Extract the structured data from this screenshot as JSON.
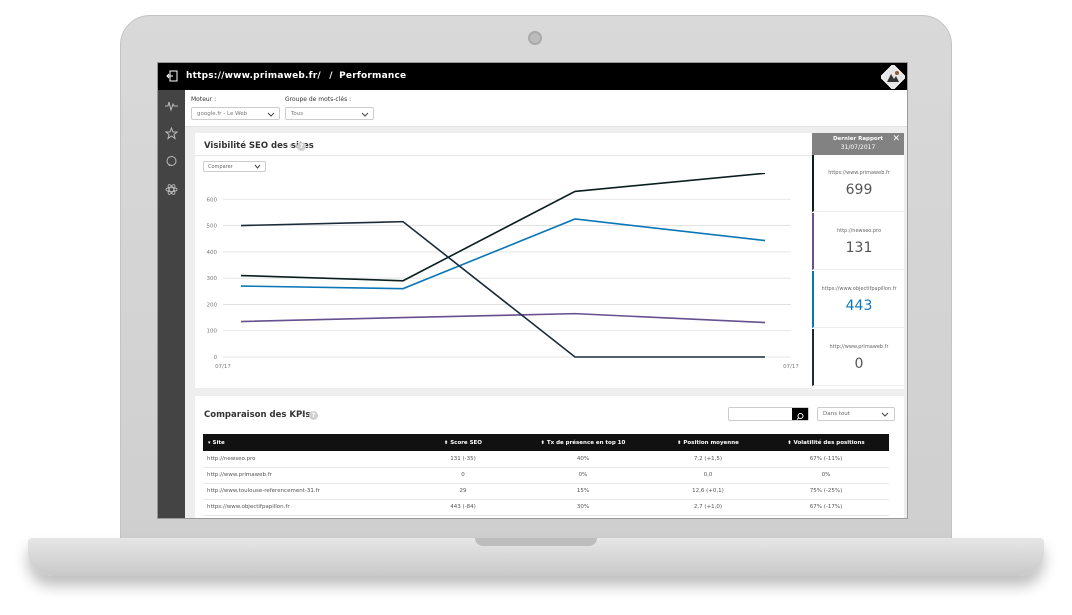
{
  "header": {
    "url": "https://www.primaweb.fr/",
    "separator": "/",
    "page": "Performance"
  },
  "filters": {
    "engine_label": "Moteur :",
    "engine_value": "google.fr - Le Web",
    "keywords_label": "Groupe de mots-clés :",
    "keywords_value": "Tous"
  },
  "visibility": {
    "title": "Visibilité SEO des sites",
    "crumb": "›",
    "help": "?",
    "compare_label": "Comparer"
  },
  "chart_data": {
    "type": "line",
    "title": "Visibilité SEO des sites",
    "x": [
      "07/17",
      "",
      "",
      "07/17"
    ],
    "xticks": [
      "07/17",
      "07/17"
    ],
    "yticks": [
      0,
      100,
      200,
      300,
      400,
      500,
      600
    ],
    "ylim": [
      0,
      700
    ],
    "grid": true,
    "series": [
      {
        "color": "#0b1f1f",
        "values": [
          310,
          290,
          630,
          699
        ]
      },
      {
        "color": "#0a76b8",
        "values": [
          270,
          260,
          525,
          443
        ]
      },
      {
        "color": "#66508f",
        "values": [
          135,
          150,
          165,
          131
        ]
      },
      {
        "color": "#1b2a3a",
        "values": [
          500,
          515,
          0,
          0
        ]
      }
    ]
  },
  "report": {
    "title": "Dernier Rapport",
    "date": "31/07/2017",
    "close": "✕",
    "cards": [
      {
        "url": "https://www.primaweb.fr",
        "value": "699",
        "color": "#0b1f1f"
      },
      {
        "url": "http://newseo.pro",
        "value": "131",
        "color": "#66508f"
      },
      {
        "url": "https://www.objectifpapillon.fr",
        "value": "443",
        "color": "#0a76b8"
      },
      {
        "url": "http://www.primaweb.fr",
        "value": "0",
        "color": "#1b2a3a"
      }
    ]
  },
  "kpi": {
    "title": "Comparaison des KPIs",
    "crumb": "›",
    "help": "?",
    "scope": "Dans tout",
    "columns": [
      "Site",
      "Score SEO",
      "Tx de présence en top 10",
      "Position moyenne",
      "Volatilité des positions"
    ],
    "rows": [
      [
        "http://newseo.pro",
        "131 (-35)",
        "40%",
        "7,2 (+1,5)",
        "67% (-11%)"
      ],
      [
        "http://www.primaweb.fr",
        "0",
        "0%",
        "0,0",
        "0%"
      ],
      [
        "http://www.toulouse-referencement-31.fr",
        "29",
        "15%",
        "12,6 (+0,1)",
        "75% (-25%)"
      ],
      [
        "https://www.objectifpapillon.fr",
        "443 (-84)",
        "30%",
        "2,7 (+1,0)",
        "67% (-17%)"
      ]
    ]
  }
}
